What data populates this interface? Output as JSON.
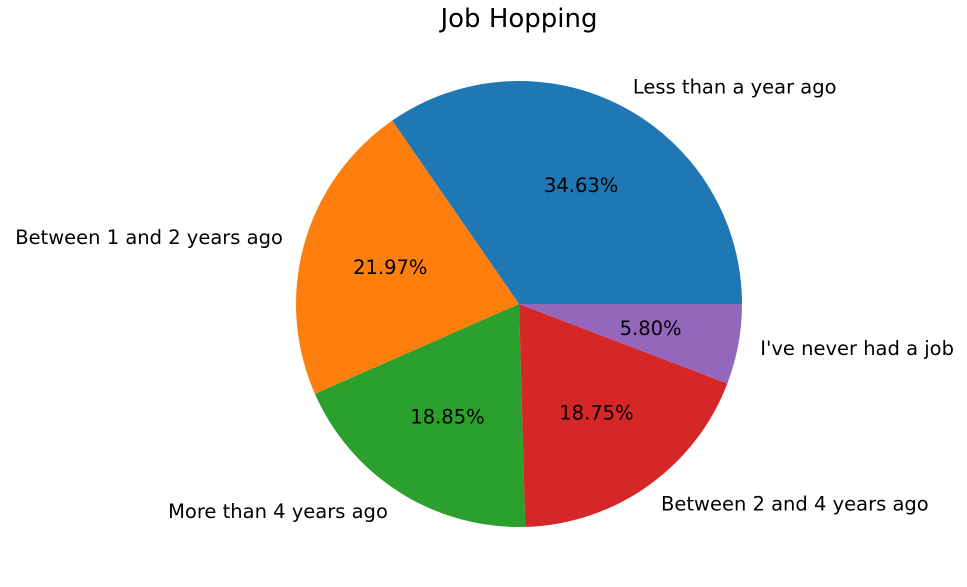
{
  "chart_data": {
    "type": "pie",
    "title": "Job Hopping",
    "categories": [
      "Less than a year ago",
      "Between 1 and 2 years ago",
      "More than 4 years ago",
      "Between 2 and 4 years ago",
      "I've never had a job"
    ],
    "values": [
      34.63,
      21.97,
      18.85,
      18.75,
      5.8
    ],
    "value_labels": [
      "34.63%",
      "21.97%",
      "18.85%",
      "18.75%",
      "5.80%"
    ],
    "colors": [
      "#1f77b4",
      "#ff7f0e",
      "#2ca02c",
      "#d62728",
      "#9467bd"
    ],
    "start_angle_deg": 0,
    "direction": "counterclockwise",
    "legend": "none"
  }
}
